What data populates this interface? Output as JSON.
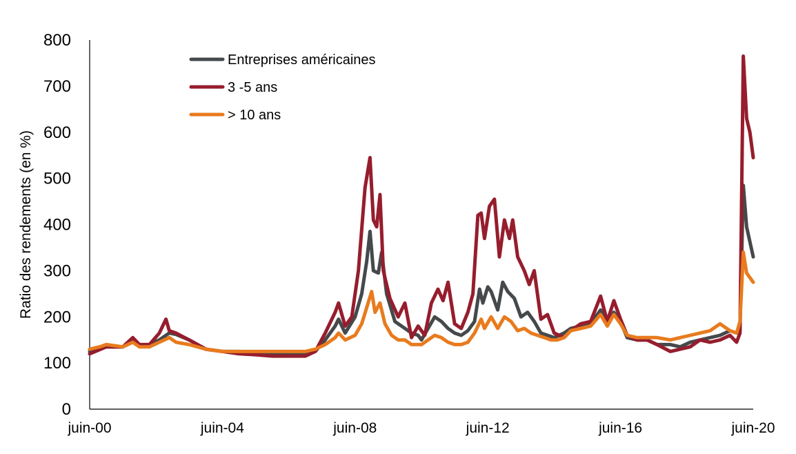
{
  "chart_data": {
    "type": "line",
    "title": "",
    "xlabel": "",
    "ylabel": "Ratio des rendements (en %)",
    "ylim": [
      0,
      800
    ],
    "yticks": [
      0,
      100,
      200,
      300,
      400,
      500,
      600,
      700,
      800
    ],
    "xlim": [
      2000.5,
      2020.5
    ],
    "xtick_labels": [
      {
        "x": 2000.5,
        "label": "juin-00"
      },
      {
        "x": 2004.5,
        "label": "juin-04"
      },
      {
        "x": 2008.5,
        "label": "juin-08"
      },
      {
        "x": 2012.5,
        "label": "juin-12"
      },
      {
        "x": 2016.5,
        "label": "juin-16"
      },
      {
        "x": 2020.5,
        "label": "juin-20"
      }
    ],
    "grid": false,
    "legend_position": "top-left",
    "series": [
      {
        "name": "Entreprises américaines",
        "color": "#45494b",
        "points": [
          [
            2000.5,
            125
          ],
          [
            2001.0,
            135
          ],
          [
            2001.5,
            135
          ],
          [
            2001.8,
            150
          ],
          [
            2002.0,
            138
          ],
          [
            2002.3,
            140
          ],
          [
            2002.6,
            150
          ],
          [
            2002.9,
            165
          ],
          [
            2003.1,
            162
          ],
          [
            2003.5,
            150
          ],
          [
            2004.0,
            130
          ],
          [
            2004.5,
            125
          ],
          [
            2005.0,
            125
          ],
          [
            2005.5,
            120
          ],
          [
            2006.0,
            120
          ],
          [
            2006.5,
            118
          ],
          [
            2007.0,
            118
          ],
          [
            2007.3,
            125
          ],
          [
            2007.6,
            150
          ],
          [
            2007.9,
            180
          ],
          [
            2008.0,
            195
          ],
          [
            2008.2,
            165
          ],
          [
            2008.5,
            200
          ],
          [
            2008.7,
            250
          ],
          [
            2008.85,
            320
          ],
          [
            2008.95,
            385
          ],
          [
            2009.05,
            300
          ],
          [
            2009.2,
            295
          ],
          [
            2009.3,
            340
          ],
          [
            2009.45,
            250
          ],
          [
            2009.7,
            190
          ],
          [
            2009.9,
            180
          ],
          [
            2010.0,
            175
          ],
          [
            2010.2,
            165
          ],
          [
            2010.4,
            160
          ],
          [
            2010.5,
            150
          ],
          [
            2010.7,
            175
          ],
          [
            2010.9,
            200
          ],
          [
            2011.1,
            190
          ],
          [
            2011.3,
            175
          ],
          [
            2011.5,
            165
          ],
          [
            2011.7,
            160
          ],
          [
            2011.9,
            170
          ],
          [
            2012.1,
            190
          ],
          [
            2012.25,
            260
          ],
          [
            2012.35,
            230
          ],
          [
            2012.5,
            265
          ],
          [
            2012.6,
            255
          ],
          [
            2012.8,
            215
          ],
          [
            2012.95,
            275
          ],
          [
            2013.1,
            255
          ],
          [
            2013.3,
            240
          ],
          [
            2013.5,
            200
          ],
          [
            2013.7,
            210
          ],
          [
            2013.9,
            190
          ],
          [
            2014.1,
            165
          ],
          [
            2014.3,
            160
          ],
          [
            2014.5,
            155
          ],
          [
            2014.8,
            165
          ],
          [
            2015.0,
            175
          ],
          [
            2015.3,
            180
          ],
          [
            2015.6,
            185
          ],
          [
            2015.9,
            215
          ],
          [
            2016.1,
            185
          ],
          [
            2016.3,
            210
          ],
          [
            2016.5,
            190
          ],
          [
            2016.7,
            155
          ],
          [
            2017.0,
            150
          ],
          [
            2017.3,
            150
          ],
          [
            2017.6,
            140
          ],
          [
            2018.0,
            140
          ],
          [
            2018.3,
            135
          ],
          [
            2018.6,
            145
          ],
          [
            2018.9,
            150
          ],
          [
            2019.2,
            155
          ],
          [
            2019.5,
            160
          ],
          [
            2019.8,
            170
          ],
          [
            2020.0,
            165
          ],
          [
            2020.1,
            170
          ],
          [
            2020.2,
            485
          ],
          [
            2020.3,
            395
          ],
          [
            2020.5,
            330
          ]
        ]
      },
      {
        "name": "3 -5 ans",
        "color": "#961d2d",
        "points": [
          [
            2000.5,
            120
          ],
          [
            2001.0,
            135
          ],
          [
            2001.5,
            135
          ],
          [
            2001.8,
            155
          ],
          [
            2002.0,
            140
          ],
          [
            2002.3,
            140
          ],
          [
            2002.6,
            165
          ],
          [
            2002.8,
            195
          ],
          [
            2002.9,
            170
          ],
          [
            2003.1,
            165
          ],
          [
            2003.5,
            150
          ],
          [
            2004.0,
            130
          ],
          [
            2004.5,
            125
          ],
          [
            2005.0,
            120
          ],
          [
            2005.5,
            118
          ],
          [
            2006.0,
            115
          ],
          [
            2006.5,
            115
          ],
          [
            2007.0,
            115
          ],
          [
            2007.3,
            125
          ],
          [
            2007.6,
            165
          ],
          [
            2007.9,
            210
          ],
          [
            2008.0,
            230
          ],
          [
            2008.2,
            180
          ],
          [
            2008.4,
            200
          ],
          [
            2008.6,
            300
          ],
          [
            2008.8,
            480
          ],
          [
            2008.95,
            545
          ],
          [
            2009.05,
            410
          ],
          [
            2009.15,
            395
          ],
          [
            2009.25,
            465
          ],
          [
            2009.35,
            300
          ],
          [
            2009.55,
            240
          ],
          [
            2009.8,
            200
          ],
          [
            2010.0,
            230
          ],
          [
            2010.2,
            155
          ],
          [
            2010.4,
            180
          ],
          [
            2010.6,
            160
          ],
          [
            2010.8,
            230
          ],
          [
            2011.0,
            260
          ],
          [
            2011.15,
            235
          ],
          [
            2011.3,
            275
          ],
          [
            2011.5,
            185
          ],
          [
            2011.7,
            175
          ],
          [
            2011.9,
            210
          ],
          [
            2012.05,
            250
          ],
          [
            2012.2,
            420
          ],
          [
            2012.3,
            425
          ],
          [
            2012.4,
            370
          ],
          [
            2012.55,
            440
          ],
          [
            2012.7,
            455
          ],
          [
            2012.85,
            330
          ],
          [
            2013.0,
            410
          ],
          [
            2013.15,
            370
          ],
          [
            2013.25,
            410
          ],
          [
            2013.4,
            330
          ],
          [
            2013.6,
            300
          ],
          [
            2013.75,
            270
          ],
          [
            2013.9,
            300
          ],
          [
            2014.1,
            195
          ],
          [
            2014.3,
            205
          ],
          [
            2014.5,
            165
          ],
          [
            2014.8,
            155
          ],
          [
            2015.0,
            170
          ],
          [
            2015.3,
            185
          ],
          [
            2015.6,
            190
          ],
          [
            2015.9,
            245
          ],
          [
            2016.1,
            190
          ],
          [
            2016.3,
            235
          ],
          [
            2016.5,
            195
          ],
          [
            2016.7,
            160
          ],
          [
            2017.0,
            150
          ],
          [
            2017.3,
            150
          ],
          [
            2017.6,
            140
          ],
          [
            2018.0,
            125
          ],
          [
            2018.3,
            130
          ],
          [
            2018.6,
            135
          ],
          [
            2018.9,
            150
          ],
          [
            2019.2,
            145
          ],
          [
            2019.5,
            150
          ],
          [
            2019.8,
            160
          ],
          [
            2020.0,
            145
          ],
          [
            2020.1,
            165
          ],
          [
            2020.2,
            765
          ],
          [
            2020.3,
            630
          ],
          [
            2020.4,
            600
          ],
          [
            2020.5,
            545
          ]
        ]
      },
      {
        "name": "> 10 ans",
        "color": "#e87b1e",
        "points": [
          [
            2000.5,
            130
          ],
          [
            2000.8,
            135
          ],
          [
            2001.0,
            140
          ],
          [
            2001.5,
            135
          ],
          [
            2001.8,
            145
          ],
          [
            2002.0,
            135
          ],
          [
            2002.3,
            135
          ],
          [
            2002.6,
            145
          ],
          [
            2002.9,
            155
          ],
          [
            2003.1,
            145
          ],
          [
            2003.5,
            140
          ],
          [
            2004.0,
            130
          ],
          [
            2004.5,
            125
          ],
          [
            2005.0,
            125
          ],
          [
            2005.5,
            125
          ],
          [
            2006.0,
            125
          ],
          [
            2006.5,
            125
          ],
          [
            2007.0,
            125
          ],
          [
            2007.3,
            130
          ],
          [
            2007.6,
            140
          ],
          [
            2007.9,
            155
          ],
          [
            2008.0,
            165
          ],
          [
            2008.2,
            150
          ],
          [
            2008.5,
            160
          ],
          [
            2008.7,
            185
          ],
          [
            2008.85,
            220
          ],
          [
            2009.0,
            255
          ],
          [
            2009.1,
            210
          ],
          [
            2009.25,
            230
          ],
          [
            2009.4,
            185
          ],
          [
            2009.6,
            160
          ],
          [
            2009.8,
            150
          ],
          [
            2010.0,
            150
          ],
          [
            2010.2,
            140
          ],
          [
            2010.5,
            140
          ],
          [
            2010.7,
            150
          ],
          [
            2010.9,
            160
          ],
          [
            2011.1,
            155
          ],
          [
            2011.3,
            145
          ],
          [
            2011.5,
            140
          ],
          [
            2011.7,
            140
          ],
          [
            2011.9,
            145
          ],
          [
            2012.1,
            165
          ],
          [
            2012.3,
            195
          ],
          [
            2012.4,
            175
          ],
          [
            2012.6,
            200
          ],
          [
            2012.8,
            175
          ],
          [
            2013.0,
            200
          ],
          [
            2013.2,
            190
          ],
          [
            2013.4,
            170
          ],
          [
            2013.6,
            175
          ],
          [
            2013.8,
            165
          ],
          [
            2014.0,
            160
          ],
          [
            2014.2,
            155
          ],
          [
            2014.4,
            150
          ],
          [
            2014.6,
            150
          ],
          [
            2014.8,
            155
          ],
          [
            2015.0,
            170
          ],
          [
            2015.3,
            175
          ],
          [
            2015.6,
            180
          ],
          [
            2015.9,
            205
          ],
          [
            2016.1,
            180
          ],
          [
            2016.3,
            205
          ],
          [
            2016.5,
            185
          ],
          [
            2016.7,
            160
          ],
          [
            2017.0,
            155
          ],
          [
            2017.3,
            155
          ],
          [
            2017.6,
            155
          ],
          [
            2018.0,
            150
          ],
          [
            2018.3,
            155
          ],
          [
            2018.6,
            160
          ],
          [
            2018.9,
            165
          ],
          [
            2019.2,
            170
          ],
          [
            2019.5,
            185
          ],
          [
            2019.8,
            170
          ],
          [
            2020.0,
            165
          ],
          [
            2020.1,
            190
          ],
          [
            2020.2,
            340
          ],
          [
            2020.3,
            295
          ],
          [
            2020.5,
            275
          ]
        ]
      }
    ]
  }
}
